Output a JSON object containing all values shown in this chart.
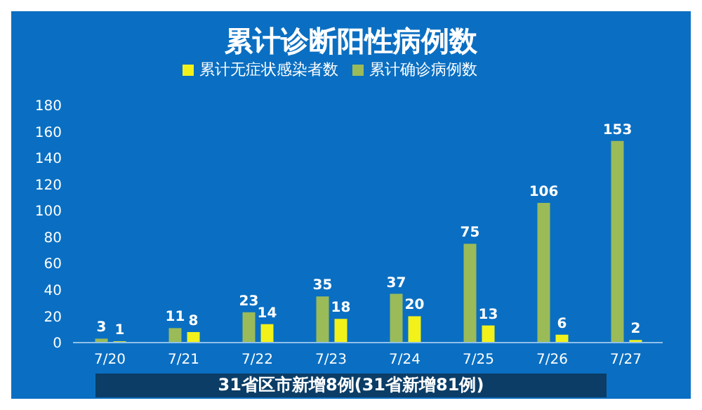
{
  "chart_data": {
    "type": "bar",
    "title": "累计诊断阳性病例数",
    "categories": [
      "7/20",
      "7/21",
      "7/22",
      "7/23",
      "7/24",
      "7/25",
      "7/26",
      "7/27"
    ],
    "series": [
      {
        "name": "累计确诊病例数",
        "color": "#9bbb59",
        "values": [
          3,
          11,
          23,
          35,
          37,
          75,
          106,
          153
        ]
      },
      {
        "name": "累计无症状感染者数",
        "color": "#f2f21a",
        "values": [
          1,
          8,
          14,
          18,
          20,
          13,
          6,
          2
        ]
      }
    ],
    "ylim": [
      0,
      180
    ],
    "yticks": [
      0,
      20,
      40,
      60,
      80,
      100,
      120,
      140,
      160,
      180
    ],
    "data_labels": true,
    "legend": "top",
    "grid": false,
    "annotations": [
      "31省区市新增8例(31省新增81例)"
    ]
  }
}
